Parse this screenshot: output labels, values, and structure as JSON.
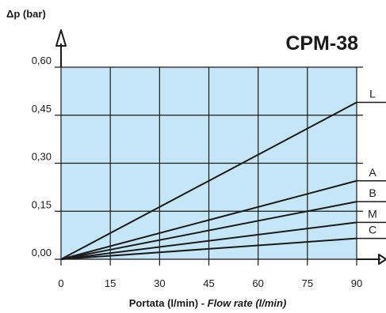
{
  "chart_data": {
    "type": "line",
    "title": "CPM-38",
    "ylabel": "Δp (bar)",
    "xlabel_main": "Portata (l/min) - ",
    "xlabel_italic": "Flow rate (l/min)",
    "x_ticks": [
      "0",
      "15",
      "30",
      "45",
      "60",
      "75",
      "90"
    ],
    "y_ticks": [
      "0,00",
      "0,15",
      "0,30",
      "0,45",
      "0,60"
    ],
    "xlim": [
      0,
      90
    ],
    "ylim": [
      0,
      0.6
    ],
    "grid": true,
    "series": [
      {
        "name": "L",
        "x": [
          0,
          90
        ],
        "y": [
          0,
          0.49
        ]
      },
      {
        "name": "A",
        "x": [
          0,
          90
        ],
        "y": [
          0,
          0.245
        ]
      },
      {
        "name": "B",
        "x": [
          0,
          90
        ],
        "y": [
          0,
          0.18
        ]
      },
      {
        "name": "M",
        "x": [
          0,
          90
        ],
        "y": [
          0,
          0.115
        ]
      },
      {
        "name": "C",
        "x": [
          0,
          90
        ],
        "y": [
          0,
          0.065
        ]
      }
    ],
    "colors": {
      "plot_background": "#c5e6f6",
      "grid": "#1a1a1a",
      "line": "#1a1a1a"
    }
  }
}
